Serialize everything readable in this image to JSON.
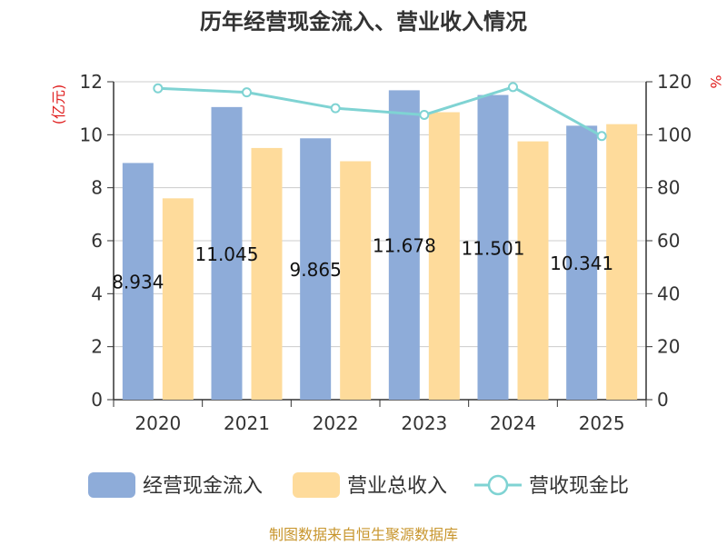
{
  "chart_data": {
    "type": "bar",
    "title": "历年经营现金流入、营业收入情况",
    "left_unit": "(亿元)",
    "right_unit": "%",
    "categories": [
      "2020",
      "2021",
      "2022",
      "2023",
      "2024",
      "2025"
    ],
    "ylim_left": [
      0,
      12
    ],
    "yticks_left": [
      "0",
      "2",
      "4",
      "6",
      "8",
      "10",
      "12"
    ],
    "ylim_right": [
      0,
      120
    ],
    "yticks_right": [
      "0",
      "20",
      "40",
      "60",
      "80",
      "100",
      "120"
    ],
    "grid": true,
    "legend_position": "bottom",
    "series": [
      {
        "name": "经营现金流入",
        "type": "bar",
        "axis": "left",
        "color": "#8eacd9",
        "values": [
          8.934,
          11.045,
          9.865,
          11.678,
          11.501,
          10.341
        ],
        "labels": [
          "8.934",
          "11.045",
          "9.865",
          "11.678",
          "11.501",
          "10.341"
        ]
      },
      {
        "name": "营业总收入",
        "type": "bar",
        "axis": "left",
        "color": "#fedb9b",
        "values": [
          7.6,
          9.5,
          9.0,
          10.85,
          9.75,
          10.4
        ]
      },
      {
        "name": "营收现金比",
        "type": "line",
        "axis": "right",
        "color": "#7fd3d3",
        "values": [
          117.5,
          116.0,
          110.0,
          107.5,
          118.0,
          99.5
        ]
      }
    ]
  },
  "footer": "制图数据来自恒生聚源数据库"
}
